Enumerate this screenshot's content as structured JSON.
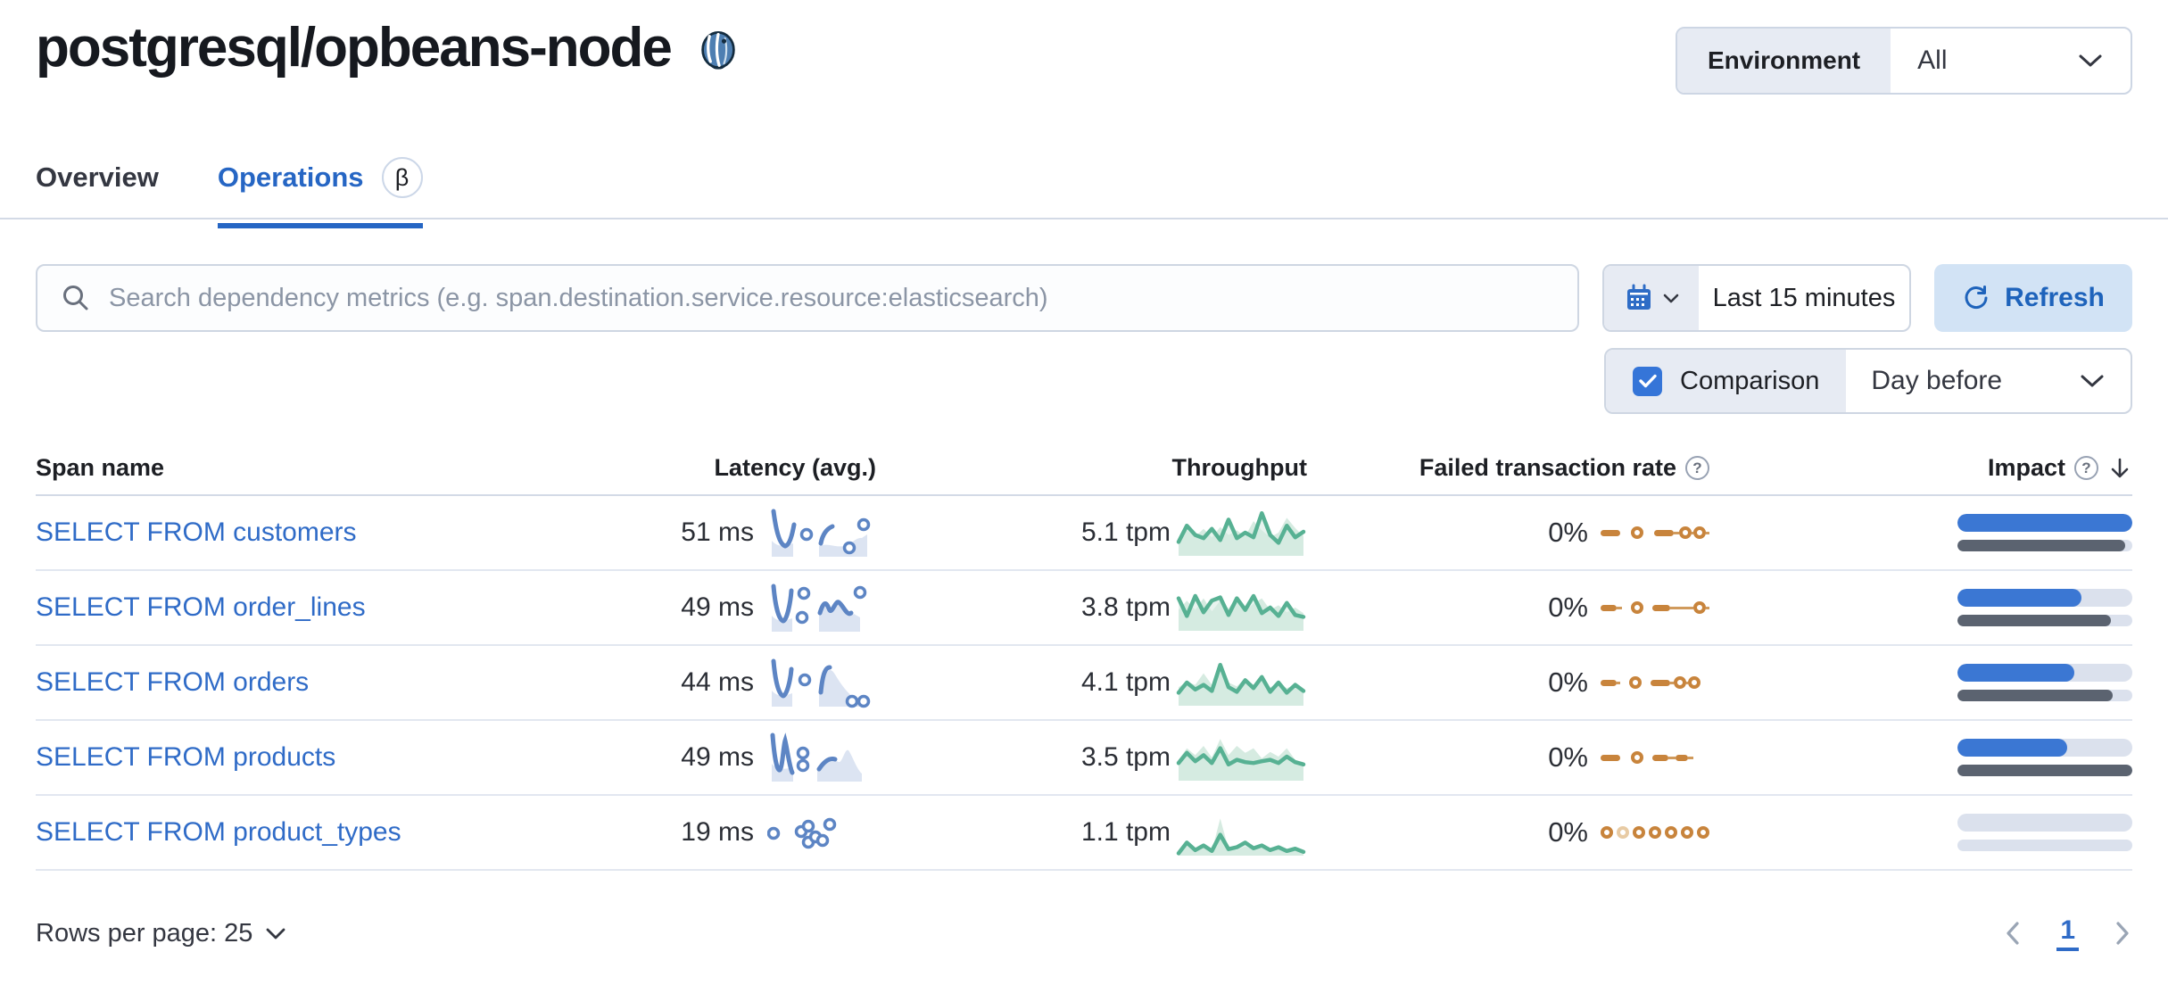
{
  "page": {
    "title": "postgresql/opbeans-node"
  },
  "environment": {
    "label": "Environment",
    "value": "All"
  },
  "tabs": [
    {
      "label": "Overview",
      "active": false
    },
    {
      "label": "Operations",
      "active": true,
      "beta": "β"
    }
  ],
  "search": {
    "placeholder": "Search dependency metrics (e.g. span.destination.service.resource:elasticsearch)"
  },
  "time": {
    "range": "Last 15 minutes",
    "refresh_label": "Refresh"
  },
  "comparison": {
    "label": "Comparison",
    "checked": true,
    "value": "Day before"
  },
  "table": {
    "columns": [
      "Span name",
      "Latency (avg.)",
      "Throughput",
      "Failed transaction rate",
      "Impact"
    ],
    "rows": [
      {
        "span_name": "SELECT FROM customers",
        "latency": "51 ms",
        "throughput": "5.1 tpm",
        "failed_rate": "0%",
        "impact_current": 100,
        "impact_previous": 96,
        "lat_spark": {
          "fills": [
            "M5,38 C12,46 20,44 29,41 L29,56 L5,56 Z",
            "M58,44 C68,40 76,46 86,44 C94,42 100,34 106,35 L112,31 L112,56 L58,56 Z"
          ],
          "strokes": [
            "M7,5 C10,28 14,42 20,44 C25,43 28,31 30,20",
            "M60,41 C62,31 66,25 73,22"
          ],
          "rings": [
            [
              44,
              31
            ],
            [
              92,
              46
            ],
            [
              108,
              20
            ]
          ]
        },
        "thr_prev": [
          0.62,
          0.45,
          0.58,
          0.42,
          0.6,
          0.38,
          0.55,
          0.45,
          0.58,
          0.25,
          0.45,
          0.6,
          0.5,
          0.18,
          0.4,
          0.58
        ],
        "thr_curr": [
          0.7,
          0.35,
          0.55,
          0.62,
          0.42,
          0.66,
          0.22,
          0.62,
          0.5,
          0.6,
          0.08,
          0.55,
          0.72,
          0.35,
          0.6,
          0.48
        ],
        "fail_tokens": [
          [
            "dash",
            22
          ],
          [
            "gap",
            12
          ],
          [
            "ring"
          ],
          [
            "gap",
            12
          ],
          [
            "dash",
            22
          ],
          [
            "line",
            6
          ],
          [
            "ring"
          ],
          [
            "line",
            2
          ],
          [
            "ring"
          ],
          [
            "line",
            4
          ]
        ]
      },
      {
        "span_name": "SELECT FROM order_lines",
        "latency": "49 ms",
        "throughput": "3.8 tpm",
        "failed_rate": "0%",
        "impact_current": 71,
        "impact_previous": 88,
        "lat_spark": {
          "fills": [
            "M5,38 C12,46 20,44 28,41 L28,56 L5,56 Z",
            "M58,36 C62,24 66,24 70,32 C74,40 78,22 84,24 C88,27 92,40 97,36 L104,40 L104,56 L58,56 Z"
          ],
          "strokes": [
            "M7,5 C9,28 13,43 18,44 C22,43 26,24 27,10",
            "M59,35 C63,22 66,22 69,30 C72,39 76,21 80,23 C85,26 89,39 94,35"
          ],
          "rings": [
            [
              41,
              13
            ],
            [
              39,
              40
            ],
            [
              104,
              12
            ]
          ]
        },
        "thr_prev": [
          0.55,
          0.35,
          0.55,
          0.3,
          0.58,
          0.35,
          0.52,
          0.28,
          0.55,
          0.42,
          0.3,
          0.55,
          0.45,
          0.6,
          0.5,
          0.62
        ],
        "thr_curr": [
          0.3,
          0.68,
          0.25,
          0.6,
          0.35,
          0.28,
          0.66,
          0.3,
          0.55,
          0.25,
          0.62,
          0.5,
          0.68,
          0.4,
          0.66,
          0.7
        ],
        "fail_tokens": [
          [
            "dash",
            18
          ],
          [
            "line",
            6
          ],
          [
            "gap",
            10
          ],
          [
            "ring"
          ],
          [
            "gap",
            10
          ],
          [
            "dash",
            20
          ],
          [
            "line",
            26
          ],
          [
            "ring"
          ],
          [
            "line",
            4
          ]
        ]
      },
      {
        "span_name": "SELECT FROM orders",
        "latency": "44 ms",
        "throughput": "4.1 tpm",
        "failed_rate": "0%",
        "impact_current": 67,
        "impact_previous": 89,
        "lat_spark": {
          "fills": [
            "M5,38 C12,46 20,44 28,41 L28,56 L5,56 Z",
            "M58,42 C64,14 70,10 76,20 C83,32 92,44 102,49 L106,50 L106,56 L58,56 Z"
          ],
          "strokes": [
            "M7,5 C9,28 13,43 18,44 C22,43 26,26 27,14",
            "M60,40 C62,20 65,12 70,12"
          ],
          "rings": [
            [
              42,
              26
            ],
            [
              95,
              50
            ],
            [
              108,
              50
            ]
          ]
        },
        "thr_prev": [
          0.6,
          0.48,
          0.55,
          0.3,
          0.55,
          0.2,
          0.5,
          0.58,
          0.4,
          0.55,
          0.45,
          0.6,
          0.52,
          0.62,
          0.55,
          0.65
        ],
        "thr_curr": [
          0.72,
          0.5,
          0.65,
          0.55,
          0.68,
          0.12,
          0.6,
          0.7,
          0.45,
          0.62,
          0.38,
          0.7,
          0.5,
          0.72,
          0.55,
          0.68
        ],
        "fail_tokens": [
          [
            "dash",
            18
          ],
          [
            "line",
            4
          ],
          [
            "gap",
            10
          ],
          [
            "ring"
          ],
          [
            "gap",
            10
          ],
          [
            "dash",
            22
          ],
          [
            "line",
            4
          ],
          [
            "ring"
          ],
          [
            "line",
            2
          ],
          [
            "ring"
          ]
        ]
      },
      {
        "span_name": "SELECT FROM products",
        "latency": "49 ms",
        "throughput": "3.5 tpm",
        "failed_rate": "0%",
        "impact_current": 63,
        "impact_previous": 100,
        "lat_spark": {
          "fills": [
            "M5,36 C12,44 20,42 29,40 L29,56 L5,56 Z",
            "M56,44 C64,33 72,30 80,34 C84,36 87,18 91,21 C95,26 100,42 106,47 L106,56 L56,56 Z"
          ],
          "strokes": [
            "M6,4 C8,30 11,44 14,43 C17,41 18,16 20,10 C22,18 25,40 28,46",
            "M58,42 C64,33 70,29 76,31"
          ],
          "rings": [
            [
              40,
              24
            ],
            [
              40,
              38
            ]
          ]
        },
        "thr_prev": [
          0.55,
          0.3,
          0.45,
          0.25,
          0.5,
          0.1,
          0.45,
          0.25,
          0.4,
          0.3,
          0.52,
          0.38,
          0.48,
          0.3,
          0.55,
          0.6
        ],
        "thr_curr": [
          0.62,
          0.4,
          0.58,
          0.45,
          0.62,
          0.3,
          0.65,
          0.55,
          0.6,
          0.62,
          0.58,
          0.55,
          0.62,
          0.48,
          0.6,
          0.65
        ],
        "fail_tokens": [
          [
            "dash",
            22
          ],
          [
            "gap",
            12
          ],
          [
            "ring"
          ],
          [
            "gap",
            10
          ],
          [
            "dash",
            18
          ],
          [
            "line",
            8
          ],
          [
            "dash",
            14
          ],
          [
            "line",
            6
          ]
        ]
      },
      {
        "span_name": "SELECT FROM product_types",
        "latency": "19 ms",
        "throughput": "1.1 tpm",
        "failed_rate": "0%",
        "impact_current": 0,
        "impact_previous": 0,
        "lat_spark": {
          "fills": [],
          "strokes": [],
          "rings": [
            [
              7,
              30
            ],
            [
              38,
              28
            ],
            [
              46,
              22
            ],
            [
              46,
              40
            ],
            [
              54,
              34
            ],
            [
              62,
              38
            ],
            [
              70,
              20
            ]
          ]
        },
        "thr_prev": [
          0.92,
          0.8,
          0.88,
          0.82,
          0.9,
          0.2,
          0.85,
          0.88,
          0.8,
          0.87,
          0.84,
          0.9,
          0.86,
          0.9,
          0.88,
          0.92
        ],
        "thr_curr": [
          0.95,
          0.72,
          0.88,
          0.78,
          0.9,
          0.55,
          0.86,
          0.82,
          0.72,
          0.84,
          0.78,
          0.88,
          0.82,
          0.9,
          0.85,
          0.92
        ],
        "fail_tokens": [
          [
            "ring"
          ],
          [
            "gap",
            4
          ],
          [
            "ring-light"
          ],
          [
            "gap",
            4
          ],
          [
            "ring"
          ],
          [
            "gap",
            4
          ],
          [
            "ring"
          ],
          [
            "gap",
            4
          ],
          [
            "ring"
          ],
          [
            "gap",
            4
          ],
          [
            "ring"
          ],
          [
            "gap",
            4
          ],
          [
            "ring"
          ]
        ]
      }
    ]
  },
  "footer": {
    "rows_per_page": "Rows per page: 25",
    "page": "1"
  },
  "colors": {
    "accent_blue": "#2666c4",
    "link_blue": "#2f6bc7",
    "impact_blue": "#3b77d3",
    "impact_gray": "#5b6370",
    "bar_track": "#dbe1ed",
    "spark_blue": "#5d85c4",
    "spark_blue_fill": "#dce4f2",
    "spark_green": "#57b193",
    "spark_green_fill": "#d6ebe1",
    "failed_orange": "#c8843c",
    "refresh_bg": "#d2e3f5"
  }
}
